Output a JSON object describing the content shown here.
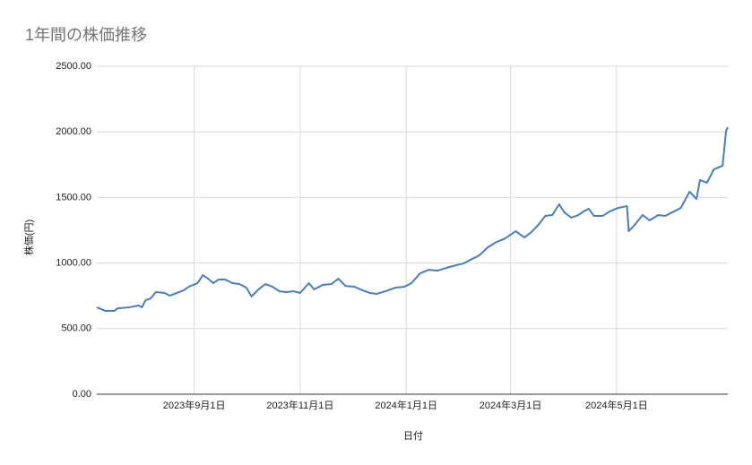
{
  "chart_data": {
    "type": "line",
    "title": "1年間の株価推移",
    "x_label": "日付",
    "y_label": "株価(円)",
    "x": [
      "2023-07-07",
      "2023-07-12",
      "2023-07-17",
      "2023-07-19",
      "2023-07-26",
      "2023-07-31",
      "2023-08-02",
      "2023-08-04",
      "2023-08-07",
      "2023-08-10",
      "2023-08-15",
      "2023-08-18",
      "2023-08-22",
      "2023-08-26",
      "2023-08-29",
      "2023-09-03",
      "2023-09-06",
      "2023-09-09",
      "2023-09-12",
      "2023-09-15",
      "2023-09-19",
      "2023-09-23",
      "2023-09-27",
      "2023-10-01",
      "2023-10-04",
      "2023-10-08",
      "2023-10-12",
      "2023-10-16",
      "2023-10-20",
      "2023-10-24",
      "2023-10-28",
      "2023-11-01",
      "2023-11-06",
      "2023-11-09",
      "2023-11-14",
      "2023-11-19",
      "2023-11-23",
      "2023-11-27",
      "2023-12-02",
      "2023-12-07",
      "2023-12-11",
      "2023-12-15",
      "2023-12-20",
      "2023-12-26",
      "2023-12-31",
      "2024-01-04",
      "2024-01-09",
      "2024-01-14",
      "2024-01-19",
      "2024-01-24",
      "2024-01-30",
      "2024-02-03",
      "2024-02-07",
      "2024-02-12",
      "2024-02-17",
      "2024-02-22",
      "2024-02-27",
      "2024-03-04",
      "2024-03-09",
      "2024-03-13",
      "2024-03-17",
      "2024-03-21",
      "2024-03-25",
      "2024-03-29",
      "2024-04-01",
      "2024-04-05",
      "2024-04-09",
      "2024-04-12",
      "2024-04-15",
      "2024-04-18",
      "2024-04-23",
      "2024-04-27",
      "2024-05-02",
      "2024-05-07",
      "2024-05-08",
      "2024-05-11",
      "2024-05-16",
      "2024-05-20",
      "2024-05-25",
      "2024-05-29",
      "2024-06-03",
      "2024-06-07",
      "2024-06-12",
      "2024-06-16",
      "2024-06-18",
      "2024-06-22",
      "2024-06-26",
      "2024-07-01",
      "2024-07-03",
      "2024-07-04"
    ],
    "values": [
      663,
      635,
      635,
      655,
      663,
      676,
      663,
      717,
      730,
      779,
      772,
      751,
      772,
      792,
      820,
      847,
      908,
      881,
      847,
      874,
      874,
      847,
      840,
      813,
      745,
      799,
      840,
      820,
      785,
      779,
      785,
      772,
      847,
      799,
      833,
      840,
      881,
      826,
      820,
      792,
      772,
      765,
      785,
      813,
      820,
      847,
      922,
      949,
      942,
      963,
      984,
      997,
      1025,
      1059,
      1120,
      1161,
      1188,
      1243,
      1195,
      1236,
      1291,
      1359,
      1366,
      1448,
      1386,
      1346,
      1366,
      1393,
      1414,
      1359,
      1359,
      1393,
      1421,
      1434,
      1243,
      1284,
      1366,
      1325,
      1366,
      1359,
      1393,
      1421,
      1544,
      1489,
      1633,
      1612,
      1714,
      1742,
      2008,
      2036
    ],
    "color": "#4a7ebb",
    "xlim": [
      "2023-07-07",
      "2024-07-04"
    ],
    "xticks": [
      {
        "value": "2023-09-01",
        "label": "2023年9月1日"
      },
      {
        "value": "2023-11-01",
        "label": "2023年11月1日"
      },
      {
        "value": "2024-01-01",
        "label": "2024年1月1日"
      },
      {
        "value": "2024-03-01",
        "label": "2024年3月1日"
      },
      {
        "value": "2024-05-01",
        "label": "2024年5月1日"
      }
    ],
    "ylim": [
      0,
      2500
    ],
    "yticks": [
      {
        "value": 0,
        "label": "0.00"
      },
      {
        "value": 500,
        "label": "500.00"
      },
      {
        "value": 1000,
        "label": "1000.00"
      },
      {
        "value": 1500,
        "label": "1500.00"
      },
      {
        "value": 2000,
        "label": "2000.00"
      },
      {
        "value": 2500,
        "label": "2500.00"
      }
    ],
    "grid": true
  }
}
